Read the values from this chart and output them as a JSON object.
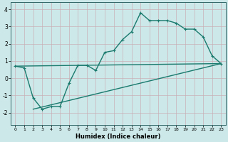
{
  "bg_color": "#cce8e8",
  "line_color": "#1a7a6e",
  "line_width": 1.0,
  "marker_size": 3.5,
  "xlabel": "Humidex (Indice chaleur)",
  "xlim": [
    -0.5,
    23.5
  ],
  "ylim": [
    -2.7,
    4.4
  ],
  "yticks": [
    -2,
    -1,
    0,
    1,
    2,
    3,
    4
  ],
  "xticks": [
    0,
    1,
    2,
    3,
    4,
    5,
    6,
    7,
    8,
    9,
    10,
    11,
    12,
    13,
    14,
    15,
    16,
    17,
    18,
    19,
    20,
    21,
    22,
    23
  ],
  "jagged": {
    "x": [
      0,
      1,
      2,
      3,
      4,
      5,
      6,
      7,
      8,
      9,
      10,
      11,
      12,
      13,
      14,
      15,
      16,
      17,
      18,
      19,
      20,
      21,
      22,
      23
    ],
    "y": [
      0.7,
      0.6,
      -1.15,
      -1.8,
      -1.65,
      -1.65,
      -0.3,
      0.75,
      0.75,
      0.45,
      1.5,
      1.6,
      2.25,
      2.7,
      3.8,
      3.35,
      3.35,
      3.35,
      3.2,
      2.85,
      2.85,
      2.4,
      1.3,
      0.85
    ]
  },
  "straight1": {
    "x": [
      0,
      23
    ],
    "y": [
      0.7,
      0.85
    ]
  },
  "straight2": {
    "x": [
      2,
      23
    ],
    "y": [
      -1.8,
      0.85
    ]
  }
}
